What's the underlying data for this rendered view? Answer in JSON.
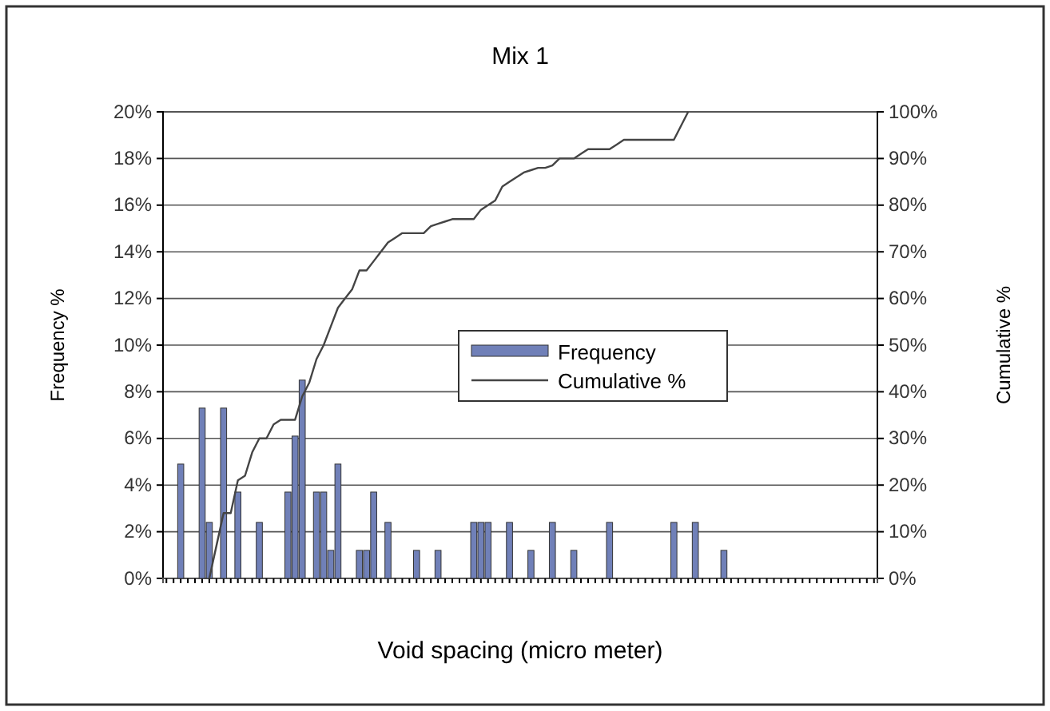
{
  "chart_data": {
    "type": "bar",
    "title": "Mix 1",
    "xlabel": "Void spacing  (micro meter)",
    "ylabel": "Frequency %",
    "y2label": "Cumulative %",
    "categories": [
      null,
      null,
      null,
      null,
      null,
      null,
      null,
      null,
      null,
      null,
      null,
      null,
      null,
      null,
      null,
      null,
      null,
      null,
      null,
      null,
      null,
      null,
      null,
      null,
      null,
      null,
      null,
      null,
      null,
      null,
      null,
      null,
      null,
      null,
      null,
      null,
      null,
      null,
      null,
      null,
      null,
      null,
      null,
      null,
      null,
      null,
      null,
      null,
      null,
      null,
      null,
      null,
      null,
      null,
      null,
      null,
      null,
      null,
      null,
      null,
      null,
      null,
      null,
      null,
      null,
      null,
      null,
      null,
      null,
      null,
      null,
      null,
      null,
      null,
      null,
      null,
      null,
      null,
      null,
      null,
      null,
      null,
      null,
      null,
      null,
      null,
      null,
      null,
      null,
      null,
      null,
      null,
      null,
      null,
      null,
      null,
      null,
      null,
      null,
      null
    ],
    "series": [
      {
        "name": "Frequency",
        "color": "#7080b8",
        "values": [
          0,
          0,
          4.9,
          0,
          0,
          7.3,
          2.4,
          0,
          7.3,
          0,
          3.7,
          0,
          0,
          2.4,
          0,
          0,
          0,
          3.7,
          6.1,
          8.5,
          0,
          3.7,
          3.7,
          1.2,
          4.9,
          0,
          0,
          1.2,
          1.2,
          3.7,
          0,
          2.4,
          0,
          0,
          0,
          1.2,
          0,
          0,
          1.2,
          0,
          0,
          0,
          0,
          2.4,
          2.4,
          2.4,
          0,
          0,
          2.4,
          0,
          0,
          1.2,
          0,
          0,
          2.4,
          0,
          0,
          1.2,
          0,
          0,
          0,
          0,
          2.4,
          0,
          0,
          0,
          0,
          0,
          0,
          0,
          0,
          2.4,
          0,
          0,
          2.4,
          0,
          0,
          0,
          1.2,
          0,
          0,
          0,
          0,
          0,
          0,
          0,
          0,
          0,
          0,
          0,
          0,
          0,
          0,
          0,
          0,
          0,
          0,
          0,
          0,
          0
        ]
      },
      {
        "name": "Cumulative %",
        "type": "line",
        "axis": "y2",
        "color": "#444444",
        "values": [
          null,
          null,
          null,
          null,
          null,
          null,
          0,
          7,
          14,
          14,
          21,
          22,
          27,
          30,
          30,
          33,
          34,
          34,
          34,
          39,
          42,
          47,
          50,
          54,
          58,
          60,
          62,
          66,
          66,
          68,
          70,
          72,
          73,
          74,
          74,
          74,
          74,
          75.5,
          76,
          76.5,
          77,
          77,
          77,
          77,
          79,
          80,
          81,
          84,
          85,
          86,
          87,
          87.5,
          88,
          88,
          88.5,
          90,
          90,
          90,
          91,
          92,
          92,
          92,
          92,
          93,
          94,
          94,
          94,
          94,
          94,
          94,
          94,
          94,
          97,
          100,
          null,
          null,
          null,
          null,
          null,
          null,
          null,
          null,
          null,
          null,
          null,
          null,
          null,
          null,
          null,
          null,
          null,
          null,
          null,
          null,
          null,
          null,
          null,
          null,
          null,
          null
        ]
      }
    ],
    "ylim": [
      0,
      20
    ],
    "yticks": [
      {
        "value": 0,
        "label": "0%"
      },
      {
        "value": 2,
        "label": "2%"
      },
      {
        "value": 4,
        "label": "4%"
      },
      {
        "value": 6,
        "label": "6%"
      },
      {
        "value": 8,
        "label": "8%"
      },
      {
        "value": 10,
        "label": "10%"
      },
      {
        "value": 12,
        "label": "12%"
      },
      {
        "value": 14,
        "label": "14%"
      },
      {
        "value": 16,
        "label": "16%"
      },
      {
        "value": 18,
        "label": "18%"
      },
      {
        "value": 20,
        "label": "20%"
      }
    ],
    "y2lim": [
      0,
      100
    ],
    "y2ticks": [
      {
        "value": 0,
        "label": "0%"
      },
      {
        "value": 10,
        "label": "10%"
      },
      {
        "value": 20,
        "label": "20%"
      },
      {
        "value": 30,
        "label": "30%"
      },
      {
        "value": 40,
        "label": "40%"
      },
      {
        "value": 50,
        "label": "50%"
      },
      {
        "value": 60,
        "label": "60%"
      },
      {
        "value": 70,
        "label": "70%"
      },
      {
        "value": 80,
        "label": "80%"
      },
      {
        "value": 90,
        "label": "90%"
      },
      {
        "value": 100,
        "label": "100%"
      }
    ],
    "grid": "y",
    "legend": "right",
    "tick_labels": "y"
  }
}
